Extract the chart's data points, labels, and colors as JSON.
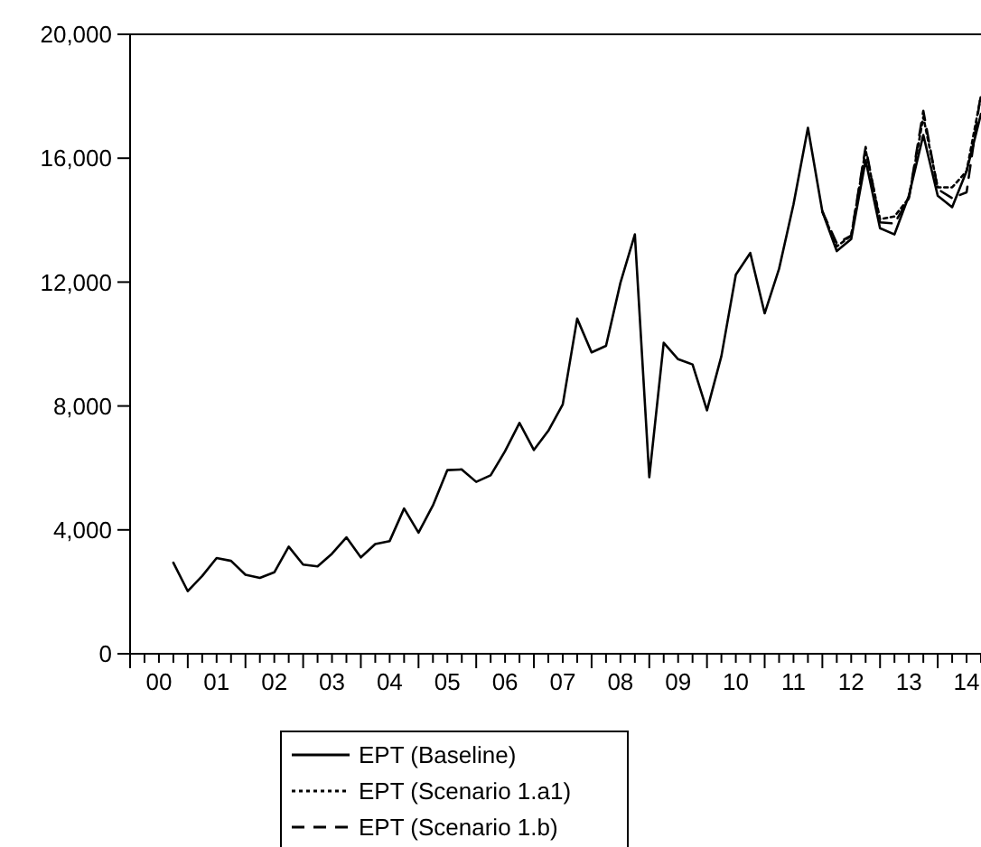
{
  "chart_data": {
    "type": "line",
    "ylim": [
      0,
      20000
    ],
    "yticks": [
      {
        "value": 0,
        "label": "0"
      },
      {
        "value": 4000,
        "label": "4,000"
      },
      {
        "value": 8000,
        "label": "8,000"
      },
      {
        "value": 12000,
        "label": "12,000"
      },
      {
        "value": 16000,
        "label": "16,000"
      },
      {
        "value": 20000,
        "label": "20,000"
      }
    ],
    "categories": [
      null,
      null,
      "00",
      null,
      null,
      null,
      "01",
      null,
      null,
      null,
      "02",
      null,
      null,
      null,
      "03",
      null,
      null,
      null,
      "04",
      null,
      null,
      null,
      "05",
      null,
      null,
      null,
      "06",
      null,
      null,
      null,
      "07",
      null,
      null,
      null,
      "08",
      null,
      null,
      null,
      "09",
      null,
      null,
      null,
      "10",
      null,
      null,
      null,
      "11",
      null,
      null,
      null,
      "12",
      null,
      null,
      null,
      "13",
      null,
      null,
      null,
      "14",
      null
    ],
    "grid": false,
    "legend": "bottom",
    "marker": "none",
    "series": [
      {
        "name": "EPT (Baseline)",
        "color": "#000000",
        "line_style": "solid",
        "values": [
          null,
          null,
          null,
          2940,
          2020,
          2510,
          3090,
          3000,
          2550,
          2450,
          2630,
          3460,
          2880,
          2820,
          3230,
          3760,
          3110,
          3540,
          3640,
          4690,
          3910,
          4790,
          5930,
          5950,
          5550,
          5760,
          6540,
          7450,
          6580,
          7200,
          8050,
          10820,
          9730,
          9940,
          11980,
          13540,
          5700,
          10040,
          9510,
          9340,
          7860,
          9610,
          12240,
          12940,
          10990,
          12430,
          14510,
          16980,
          14280,
          13000,
          13390,
          15930,
          13740,
          13540,
          14790,
          16750,
          14790,
          14420,
          15580,
          17430
        ]
      },
      {
        "name": "EPT (Scenario 1.a1)",
        "color": "#000000",
        "line_style": "dotted",
        "values": [
          null,
          null,
          null,
          null,
          null,
          null,
          null,
          null,
          null,
          null,
          null,
          null,
          null,
          null,
          null,
          null,
          null,
          null,
          null,
          null,
          null,
          null,
          null,
          null,
          null,
          null,
          null,
          null,
          null,
          null,
          null,
          null,
          null,
          null,
          null,
          null,
          null,
          null,
          null,
          null,
          null,
          null,
          null,
          null,
          null,
          null,
          null,
          null,
          14280,
          13150,
          13500,
          16260,
          14030,
          14120,
          14710,
          17330,
          15060,
          15060,
          15580,
          18020
        ]
      },
      {
        "name": "EPT (Scenario 1.b)",
        "color": "#000000",
        "line_style": "dashed",
        "values": [
          null,
          null,
          null,
          null,
          null,
          null,
          null,
          null,
          null,
          null,
          null,
          null,
          null,
          null,
          null,
          null,
          null,
          null,
          null,
          null,
          null,
          null,
          null,
          null,
          null,
          null,
          null,
          null,
          null,
          null,
          null,
          null,
          null,
          null,
          null,
          null,
          null,
          null,
          null,
          null,
          null,
          null,
          null,
          null,
          null,
          null,
          null,
          null,
          14280,
          13250,
          13500,
          16360,
          13930,
          13890,
          14710,
          17530,
          15000,
          14710,
          14900,
          18110
        ]
      }
    ]
  }
}
